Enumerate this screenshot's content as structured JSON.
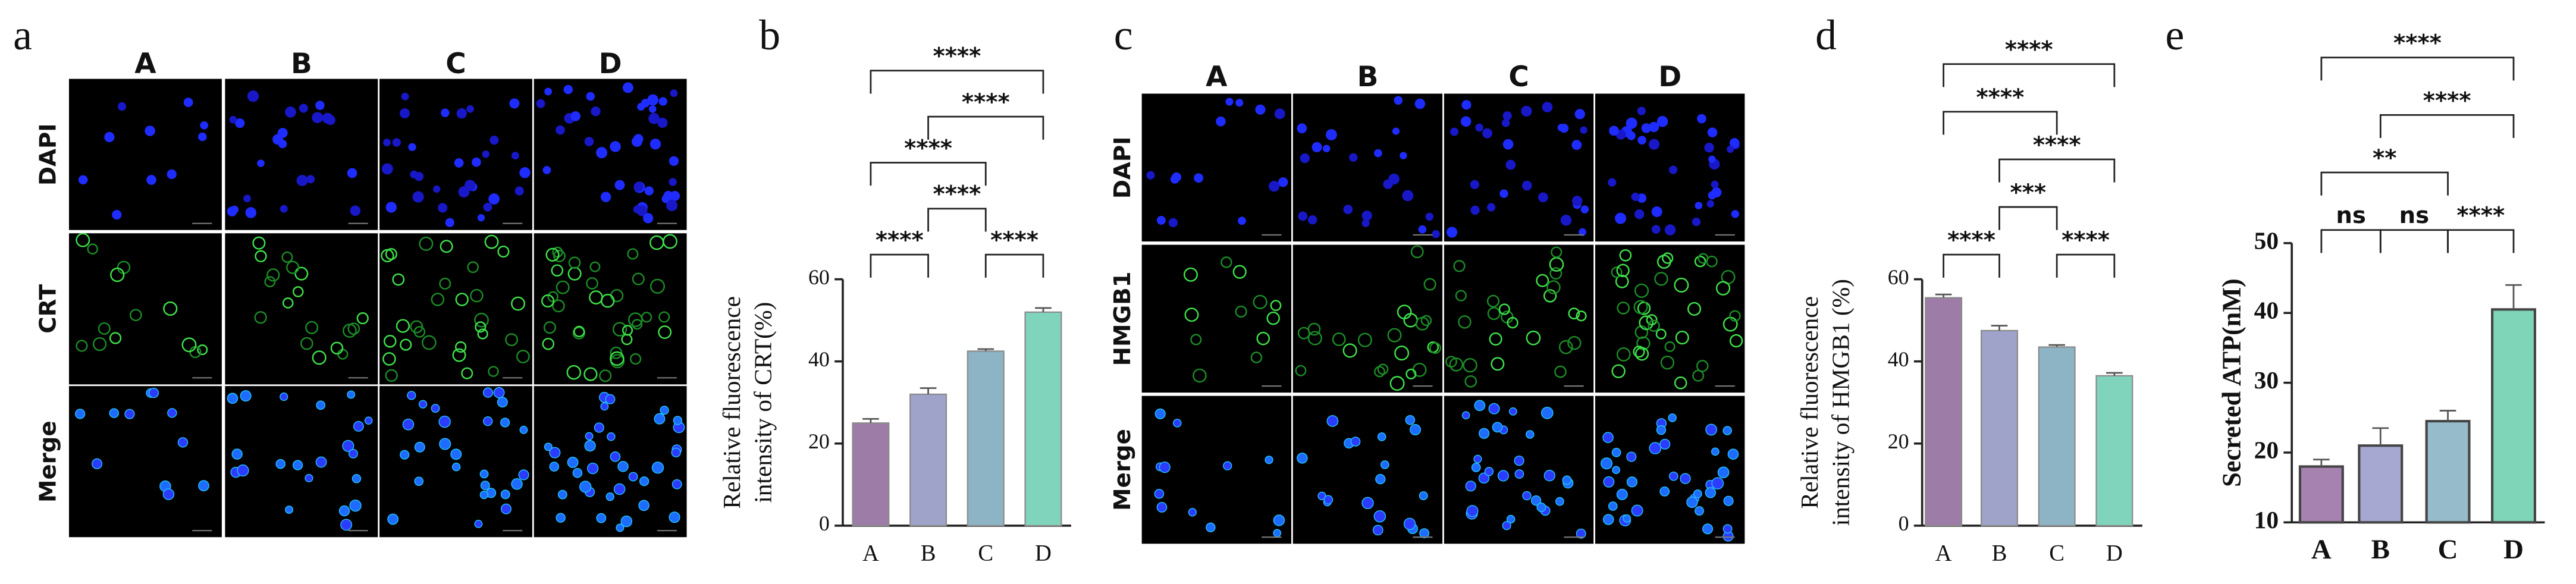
{
  "image_panels": [
    {
      "label": "a",
      "columns": [
        "A",
        "B",
        "C",
        "D"
      ],
      "rows": [
        "DAPI",
        "CRT",
        "Merge"
      ]
    },
    {
      "label": "c",
      "columns": [
        "A",
        "B",
        "C",
        "D"
      ],
      "rows": [
        "DAPI",
        "HMGB1",
        "Merge"
      ]
    }
  ],
  "chart_data": [
    {
      "type": "bar",
      "panel_label": "b",
      "ylabel": [
        "Relative fluorescence",
        "intensity of CRT(%)"
      ],
      "categories": [
        "A",
        "B",
        "C",
        "D"
      ],
      "values": [
        25,
        32,
        42.5,
        52
      ],
      "errors": [
        1,
        1.5,
        0.5,
        1
      ],
      "colors": [
        "#9e7ca8",
        "#9fa3c9",
        "#8cb4c4",
        "#80d4bb"
      ],
      "ylim": [
        0,
        60
      ],
      "yticks": [
        0,
        20,
        40,
        60
      ],
      "significance": [
        [
          {
            "between": [
              "A",
              "B"
            ],
            "label": "****"
          },
          {
            "between": [
              "C",
              "D"
            ],
            "label": "****"
          }
        ],
        [
          {
            "between": [
              "B",
              "C"
            ],
            "label": "****"
          }
        ],
        [
          {
            "between": [
              "A",
              "C"
            ],
            "label": "****"
          }
        ],
        [
          {
            "between": [
              "B",
              "D"
            ],
            "label": "****"
          }
        ],
        [
          {
            "between": [
              "A",
              "D"
            ],
            "label": "****"
          }
        ]
      ]
    },
    {
      "type": "bar",
      "panel_label": "d",
      "ylabel": [
        "Relative fluorescence",
        "intensity of HMGB1 (%)"
      ],
      "categories": [
        "A",
        "B",
        "C",
        "D"
      ],
      "values": [
        55.5,
        47.5,
        43.5,
        36.5
      ],
      "errors": [
        0.8,
        1.2,
        0.5,
        0.7
      ],
      "colors": [
        "#9e7ca8",
        "#9fa3c9",
        "#8cb4c4",
        "#80d4bb"
      ],
      "ylim": [
        0,
        60
      ],
      "yticks": [
        0,
        20,
        40,
        60
      ],
      "significance": [
        [
          {
            "between": [
              "A",
              "B"
            ],
            "label": "****"
          },
          {
            "between": [
              "C",
              "D"
            ],
            "label": "****"
          }
        ],
        [
          {
            "between": [
              "B",
              "C"
            ],
            "label": "***"
          }
        ],
        [
          {
            "between": [
              "B",
              "D"
            ],
            "label": "****"
          }
        ],
        [
          {
            "between": [
              "A",
              "C"
            ],
            "label": "****"
          }
        ],
        [
          {
            "between": [
              "A",
              "D"
            ],
            "label": "****"
          }
        ]
      ]
    },
    {
      "type": "bar",
      "panel_label": "e",
      "ylabel": [
        "Secreted ATP(nM)"
      ],
      "categories": [
        "A",
        "B",
        "C",
        "D"
      ],
      "values": [
        18,
        21,
        24.5,
        40.5
      ],
      "errors": [
        1,
        2.5,
        1.5,
        3.5
      ],
      "colors": [
        "#a682b0",
        "#a7a8d2",
        "#96bccb",
        "#7fd5b8"
      ],
      "ylim": [
        10,
        50
      ],
      "yticks": [
        10,
        20,
        30,
        40,
        50
      ],
      "significance": [
        [
          {
            "between": [
              "A",
              "B"
            ],
            "label": "ns"
          },
          {
            "between": [
              "B",
              "C"
            ],
            "label": "ns"
          },
          {
            "between": [
              "C",
              "D"
            ],
            "label": "****"
          }
        ],
        [
          {
            "between": [
              "A",
              "C"
            ],
            "label": "**"
          }
        ],
        [
          {
            "between": [
              "B",
              "D"
            ],
            "label": "****"
          }
        ],
        [
          {
            "between": [
              "A",
              "D"
            ],
            "label": "****"
          }
        ]
      ]
    }
  ]
}
